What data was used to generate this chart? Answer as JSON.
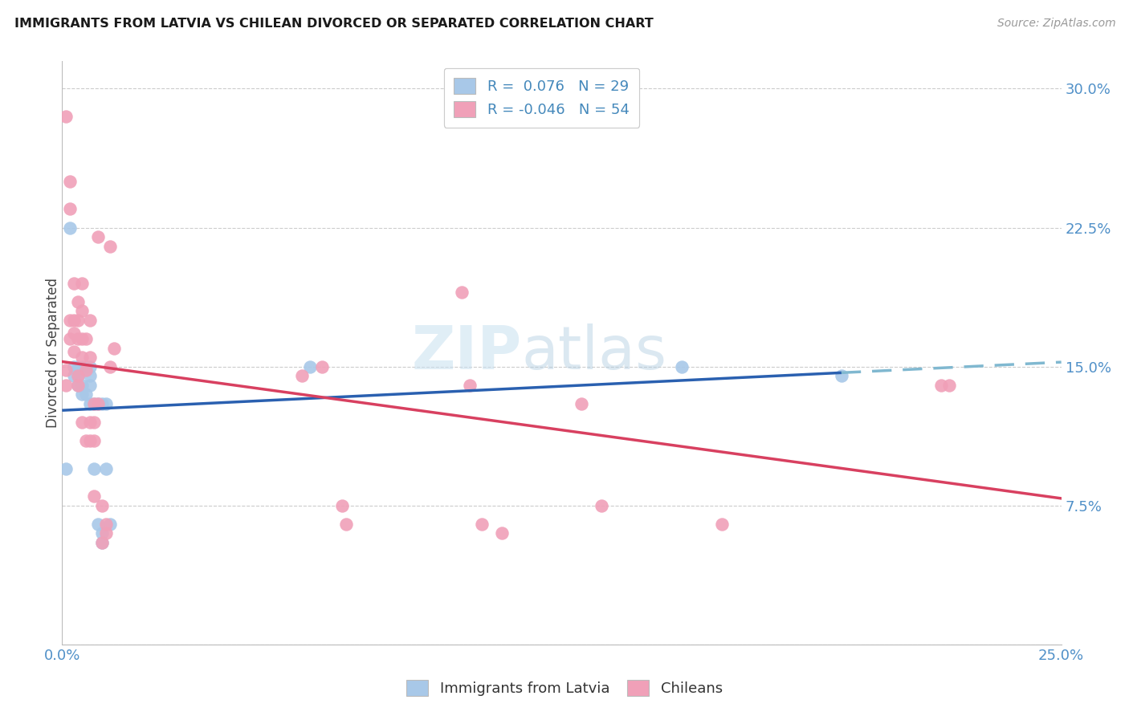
{
  "title": "IMMIGRANTS FROM LATVIA VS CHILEAN DIVORCED OR SEPARATED CORRELATION CHART",
  "source": "Source: ZipAtlas.com",
  "ylabel": "Divorced or Separated",
  "xlim": [
    0.0,
    0.25
  ],
  "ylim": [
    0.0,
    0.315
  ],
  "xticks": [
    0.0,
    0.05,
    0.1,
    0.15,
    0.2,
    0.25
  ],
  "yticks": [
    0.0,
    0.075,
    0.15,
    0.225,
    0.3
  ],
  "legend_blue_r": "0.076",
  "legend_blue_n": "29",
  "legend_pink_r": "-0.046",
  "legend_pink_n": "54",
  "blue_fill": "#a8c8e8",
  "pink_fill": "#f0a0b8",
  "blue_line": "#2a60b0",
  "pink_line": "#d84060",
  "blue_dash": "#80b8d0",
  "tick_color": "#5090c8",
  "grid_color": "#cccccc",
  "label_blue": "Immigrants from Latvia",
  "label_pink": "Chileans",
  "blue_x": [
    0.001,
    0.002,
    0.003,
    0.003,
    0.004,
    0.004,
    0.004,
    0.005,
    0.005,
    0.005,
    0.006,
    0.006,
    0.007,
    0.007,
    0.007,
    0.007,
    0.008,
    0.008,
    0.009,
    0.009,
    0.01,
    0.01,
    0.01,
    0.011,
    0.011,
    0.012,
    0.062,
    0.155,
    0.195
  ],
  "blue_y": [
    0.095,
    0.225,
    0.15,
    0.145,
    0.15,
    0.145,
    0.14,
    0.15,
    0.14,
    0.135,
    0.15,
    0.135,
    0.15,
    0.145,
    0.14,
    0.13,
    0.13,
    0.095,
    0.13,
    0.065,
    0.13,
    0.06,
    0.055,
    0.13,
    0.095,
    0.065,
    0.15,
    0.15,
    0.145
  ],
  "pink_x": [
    0.001,
    0.001,
    0.001,
    0.002,
    0.002,
    0.002,
    0.002,
    0.003,
    0.003,
    0.003,
    0.003,
    0.004,
    0.004,
    0.004,
    0.004,
    0.004,
    0.005,
    0.005,
    0.005,
    0.005,
    0.005,
    0.006,
    0.006,
    0.006,
    0.007,
    0.007,
    0.007,
    0.007,
    0.008,
    0.008,
    0.008,
    0.008,
    0.009,
    0.009,
    0.01,
    0.01,
    0.011,
    0.011,
    0.012,
    0.012,
    0.013,
    0.06,
    0.065,
    0.07,
    0.071,
    0.1,
    0.102,
    0.105,
    0.11,
    0.13,
    0.135,
    0.165,
    0.22,
    0.222
  ],
  "pink_y": [
    0.285,
    0.148,
    0.14,
    0.25,
    0.235,
    0.175,
    0.165,
    0.195,
    0.175,
    0.168,
    0.158,
    0.185,
    0.175,
    0.165,
    0.145,
    0.14,
    0.195,
    0.18,
    0.165,
    0.155,
    0.12,
    0.165,
    0.148,
    0.11,
    0.175,
    0.155,
    0.12,
    0.11,
    0.13,
    0.12,
    0.11,
    0.08,
    0.22,
    0.13,
    0.075,
    0.055,
    0.065,
    0.06,
    0.215,
    0.15,
    0.16,
    0.145,
    0.15,
    0.075,
    0.065,
    0.19,
    0.14,
    0.065,
    0.06,
    0.13,
    0.075,
    0.065,
    0.14,
    0.14
  ]
}
